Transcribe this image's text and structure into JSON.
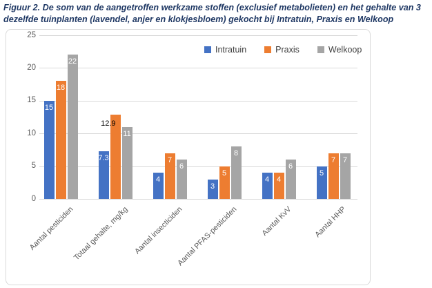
{
  "title_lines": [
    "Figuur 2. De som van de aangetroffen werkzame stoffen (exclusief metabolieten) en het gehalte van 3",
    "dezelfde tuinplanten (lavendel, anjer en klokjesbloem) gekocht bij Intratuin, Praxis en Welkoop"
  ],
  "chart_data": {
    "type": "bar",
    "title": "Figuur 2. De som van de aangetroffen werkzame stoffen (exclusief metabolieten) en het gehalte van 3 dezelfde tuinplanten (lavendel, anjer en klokjesbloem) gekocht bij Intratuin, Praxis en Welkoop",
    "categories": [
      "Aantal pesticiden",
      "Totaal gehalte, mg/kg",
      "Aantal insecticiden",
      "Aantal PFAS-pesticiden",
      "Aantal KvV",
      "Aantal HHP"
    ],
    "series": [
      {
        "name": "Intratuin",
        "color": "#4472C4",
        "values": [
          15,
          7.3,
          4,
          3,
          4,
          5
        ]
      },
      {
        "name": "Praxis",
        "color": "#ED7D31",
        "values": [
          18,
          12.9,
          7,
          5,
          4,
          7
        ]
      },
      {
        "name": "Welkoop",
        "color": "#A5A5A5",
        "values": [
          22,
          11,
          6,
          8,
          6,
          7
        ]
      }
    ],
    "y_axis": {
      "min": 0,
      "max": 25,
      "step": 5,
      "ticks": [
        0,
        5,
        10,
        15,
        20,
        25
      ]
    },
    "xlabel": "",
    "ylabel": "",
    "grid": true,
    "legend_position": "top",
    "data_labels": true,
    "data_label_color": "#ffffff",
    "label_overrides": [
      {
        "series": 1,
        "category": 1,
        "position": "outside-left",
        "color": "#000000"
      }
    ]
  },
  "colors": {
    "title": "#1F3864",
    "axis_text": "#595959",
    "legend_text": "#404040",
    "gridline": "#D9D9D9",
    "frame_border": "#D9D9D9",
    "background": "#FFFFFF"
  }
}
